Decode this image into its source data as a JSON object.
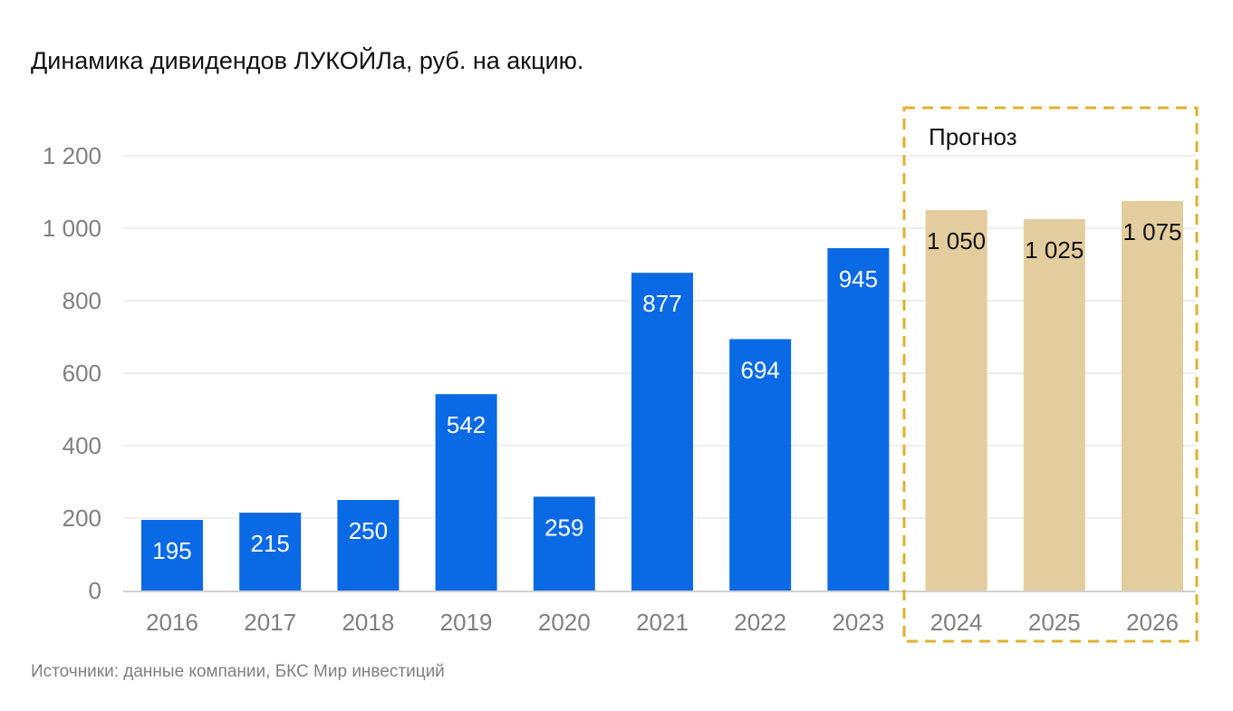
{
  "title": "Динамика дивидендов ЛУКОЙЛа, руб. на акцию.",
  "source": "Источники: данные компании, БКС Мир инвестиций",
  "forecast_label": "Прогноз",
  "colors": {
    "actual": "#0a6ae6",
    "forecast": "#e3cc9d",
    "forecast_box": "#e0b030",
    "grid": "#dedede",
    "axis_text": "#7f7f7f"
  },
  "chart_data": {
    "type": "bar",
    "title": "Динамика дивидендов ЛУКОЙЛа, руб. на акцию.",
    "xlabel": "",
    "ylabel": "",
    "ylim": [
      0,
      1200
    ],
    "y_ticks": [
      0,
      200,
      400,
      600,
      800,
      1000,
      1200
    ],
    "y_tick_labels": [
      "0",
      "200",
      "400",
      "600",
      "800",
      "1 000",
      "1 200"
    ],
    "grid": true,
    "categories": [
      "2016",
      "2017",
      "2018",
      "2019",
      "2020",
      "2021",
      "2022",
      "2023",
      "2024",
      "2025",
      "2026"
    ],
    "values": [
      195,
      215,
      250,
      542,
      259,
      877,
      694,
      945,
      1050,
      1025,
      1075
    ],
    "value_labels": [
      "195",
      "215",
      "250",
      "542",
      "259",
      "877",
      "694",
      "945",
      "1 050",
      "1 025",
      "1 075"
    ],
    "forecast": [
      false,
      false,
      false,
      false,
      false,
      false,
      false,
      false,
      true,
      true,
      true
    ]
  }
}
